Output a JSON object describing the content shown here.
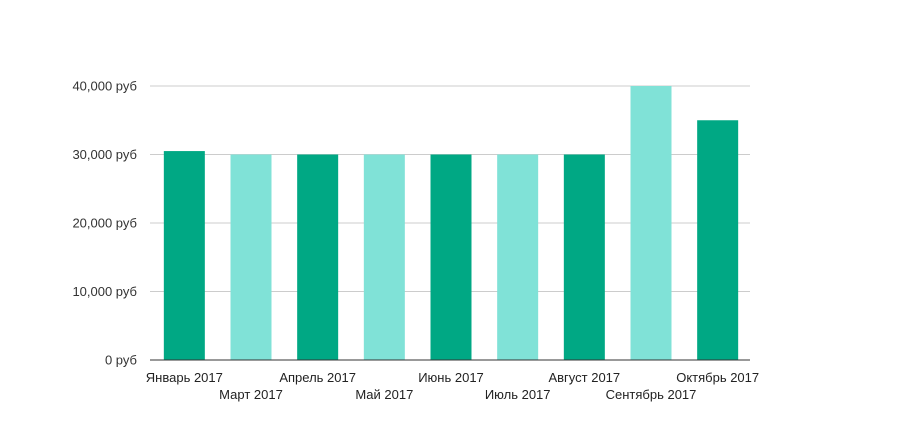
{
  "chart_data": {
    "type": "bar",
    "categories": [
      "Январь 2017",
      "Март 2017",
      "Апрель 2017",
      "Май 2017",
      "Июнь 2017",
      "Июль 2017",
      "Август 2017",
      "Сентябрь 2017",
      "Октябрь 2017"
    ],
    "values": [
      30500,
      30000,
      30000,
      30000,
      30000,
      30000,
      30000,
      40000,
      35000
    ],
    "y_ticks": [
      "0 руб",
      "10,000 руб",
      "20,000 руб",
      "30,000 руб",
      "40,000 руб"
    ],
    "y_tick_values": [
      0,
      10000,
      20000,
      30000,
      40000
    ],
    "ylim": [
      0,
      40000
    ],
    "grid": true,
    "colors": {
      "dark": "#00a884",
      "light": "#80e2d7",
      "bar_colors": [
        "#00a884",
        "#80e2d7",
        "#00a884",
        "#80e2d7",
        "#00a884",
        "#80e2d7",
        "#00a884",
        "#80e2d7",
        "#00a884"
      ],
      "grid": "#cccccc",
      "axis": "#333333"
    }
  }
}
